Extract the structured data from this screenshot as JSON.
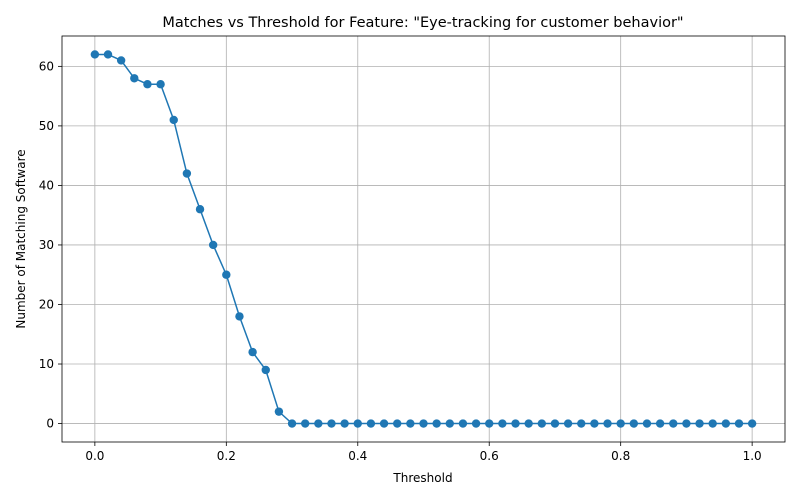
{
  "chart_data": {
    "type": "line",
    "title": "Matches vs Threshold for Feature: \"Eye-tracking for customer behavior\"",
    "xlabel": "Threshold",
    "ylabel": "Number of Matching Software",
    "xlim": [
      -0.05,
      1.05
    ],
    "ylim": [
      -3.1,
      65.1
    ],
    "grid": true,
    "x_ticks": [
      0.0,
      0.2,
      0.4,
      0.6,
      0.8,
      1.0
    ],
    "x_tick_labels": [
      "0.0",
      "0.2",
      "0.4",
      "0.6",
      "0.8",
      "1.0"
    ],
    "y_ticks": [
      0,
      10,
      20,
      30,
      40,
      50,
      60
    ],
    "y_tick_labels": [
      "0",
      "10",
      "20",
      "30",
      "40",
      "50",
      "60"
    ],
    "series": [
      {
        "color": "#1f77b4",
        "marker": "circle",
        "x": [
          0.0,
          0.02,
          0.04,
          0.06,
          0.08,
          0.1,
          0.12,
          0.14,
          0.16,
          0.18,
          0.2,
          0.22,
          0.24,
          0.26,
          0.28,
          0.3,
          0.32,
          0.34,
          0.36,
          0.38,
          0.4,
          0.42,
          0.44,
          0.46,
          0.48,
          0.5,
          0.52,
          0.54,
          0.56,
          0.58,
          0.6,
          0.62,
          0.64,
          0.66,
          0.68,
          0.7,
          0.72,
          0.74,
          0.76,
          0.78,
          0.8,
          0.82,
          0.84,
          0.86,
          0.88,
          0.9,
          0.92,
          0.94,
          0.96,
          0.98,
          1.0
        ],
        "y": [
          62,
          62,
          61,
          58,
          57,
          57,
          51,
          42,
          36,
          30,
          25,
          18,
          12,
          9,
          2,
          0,
          0,
          0,
          0,
          0,
          0,
          0,
          0,
          0,
          0,
          0,
          0,
          0,
          0,
          0,
          0,
          0,
          0,
          0,
          0,
          0,
          0,
          0,
          0,
          0,
          0,
          0,
          0,
          0,
          0,
          0,
          0,
          0,
          0,
          0,
          0
        ]
      }
    ]
  }
}
